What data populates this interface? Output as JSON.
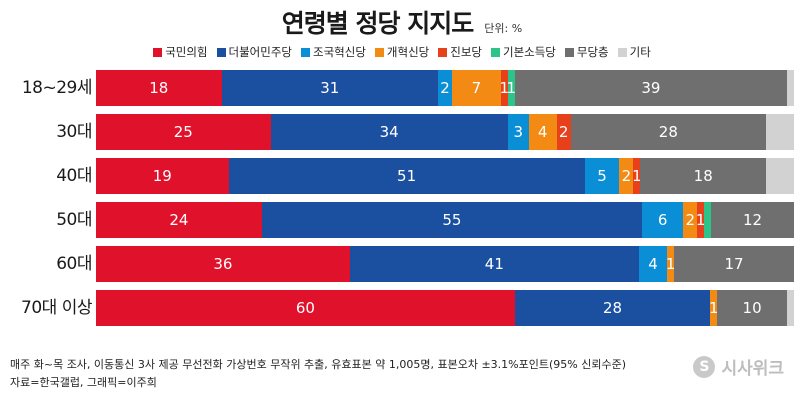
{
  "header": {
    "title": "연령별 정당 지지도",
    "unit": "단위: %"
  },
  "colors": {
    "국민의힘": "#e0112b",
    "더불어민주당": "#1b4fa0",
    "조국혁신당": "#0a8fd6",
    "개혁신당": "#f28a14",
    "진보당": "#e8401b",
    "기본소득당": "#2dc48a",
    "무당층": "#6f6f6f",
    "기타": "#d2d2d2"
  },
  "chart_data": {
    "type": "bar",
    "orientation": "horizontal",
    "stacked": true,
    "title": "연령별 정당 지지도",
    "unit": "단위: %",
    "categories": [
      "18~29세",
      "30대",
      "40대",
      "50대",
      "60대",
      "70대 이상"
    ],
    "series": [
      {
        "name": "국민의힘",
        "values": [
          18,
          25,
          19,
          24,
          36,
          60
        ]
      },
      {
        "name": "더불어민주당",
        "values": [
          31,
          34,
          51,
          55,
          41,
          28
        ]
      },
      {
        "name": "조국혁신당",
        "values": [
          2,
          3,
          5,
          6,
          4,
          0
        ]
      },
      {
        "name": "개혁신당",
        "values": [
          7,
          4,
          2,
          2,
          1,
          1
        ]
      },
      {
        "name": "진보당",
        "values": [
          1,
          2,
          1,
          1,
          0,
          0
        ]
      },
      {
        "name": "기본소득당",
        "values": [
          1,
          0,
          0,
          1,
          0,
          0
        ]
      },
      {
        "name": "무당층",
        "values": [
          39,
          28,
          18,
          12,
          17,
          10
        ]
      },
      {
        "name": "기타",
        "values": [
          1,
          4,
          4,
          0,
          0,
          1
        ]
      }
    ],
    "labels": [
      [
        "18",
        "31",
        "2",
        "7",
        "1",
        "1",
        "39",
        ""
      ],
      [
        "25",
        "34",
        "3",
        "4",
        "2",
        "",
        "28",
        ""
      ],
      [
        "19",
        "51",
        "5",
        "2",
        "1",
        "",
        "18",
        ""
      ],
      [
        "24",
        "55",
        "6",
        "2",
        "1",
        "",
        "12",
        ""
      ],
      [
        "36",
        "41",
        "4",
        "1",
        "",
        "",
        "17",
        ""
      ],
      [
        "60",
        "28",
        "",
        "1",
        "",
        "",
        "10",
        ""
      ]
    ],
    "legend": "top",
    "grid": false
  },
  "footer": {
    "line1": "매주 화~목 조사, 이동통신 3사 제공 무선전화 가상번호 무작위 추출, 유효표본 약 1,005명, 표본오차 ±3.1%포인트(95% 신뢰수준)",
    "line2": "자료=한국갤럽, 그래픽=이주희"
  },
  "logo": {
    "mark": "S",
    "text": "시사위크"
  }
}
